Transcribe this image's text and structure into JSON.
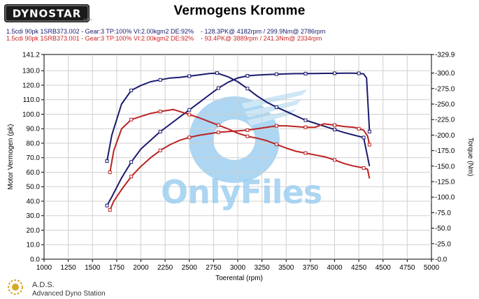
{
  "header": {
    "logo_text": "DYNOSTAR",
    "logo_sub": ".com",
    "title": "Vermogens Kromme"
  },
  "legend": {
    "run1": "1.5cdi 90pk 1SRB373.002 - Gear:3 TP:100% VI:2.00kgm2 DE:92%    - 128.3PK@ 4182rpm / 299.9Nm@ 2786rpm",
    "run2": "1.5cdi 90pk 1SRB373.001 - Gear:3 TP:100% VI:2.00kgm2 DE:92%    - 93.4PK@ 3889rpm / 241.3Nm@ 2334rpm"
  },
  "watermark": "OnlyFiles",
  "footer": {
    "brand": "A.D.S.",
    "subtitle": "Advanced Dyno Station"
  },
  "chart_data": {
    "type": "line",
    "xlabel": "Toerental (rpm)",
    "ylabel_left": "Motor Vermogen (pk)",
    "ylabel_right": "Torque (Nm)",
    "xlim": [
      1000,
      5000
    ],
    "xticks": [
      1000,
      1250,
      1500,
      1750,
      2000,
      2250,
      2500,
      2750,
      3000,
      3250,
      3500,
      3750,
      4000,
      4250,
      4500,
      4750,
      5000
    ],
    "ylim_left": [
      0,
      141.2
    ],
    "yticks_left": [
      "0.0",
      "10.0",
      "20.0",
      "30.0",
      "40.0",
      "50.0",
      "60.0",
      "70.0",
      "80.0",
      "90.0",
      "100.0",
      "110.0",
      "120.0",
      "130.0",
      "141.2"
    ],
    "ylim_right": [
      0,
      329.9
    ],
    "yticks_right": [
      "-0.0",
      "-25.0",
      "-50.0",
      "-75.0",
      "-100.0",
      "-125.0",
      "-150.0",
      "-175.0",
      "-200.0",
      "-225.0",
      "-250.0",
      "-275.0",
      "-300.0",
      "-329.9"
    ],
    "grid": true,
    "series": [
      {
        "name": "1.5cdi 90pk 1SRB373.002 power",
        "axis": "left",
        "color": "#1a1a6e",
        "x": [
          1650,
          1700,
          1800,
          1900,
          2000,
          2100,
          2200,
          2300,
          2400,
          2500,
          2600,
          2700,
          2800,
          2900,
          3000,
          3100,
          3200,
          3300,
          3400,
          3500,
          3600,
          3700,
          3800,
          3900,
          4000,
          4100,
          4182,
          4250,
          4300,
          4330,
          4360
        ],
        "values": [
          37,
          43,
          56,
          67,
          76,
          82,
          88,
          93,
          98,
          103,
          108,
          113,
          118,
          122,
          125,
          126.5,
          127,
          127.3,
          127.6,
          127.8,
          128,
          128,
          128.1,
          128.2,
          128.2,
          128.3,
          128.3,
          128.2,
          127.8,
          125,
          88
        ]
      },
      {
        "name": "1.5cdi 90pk 1SRB373.002 torque",
        "axis": "right",
        "color": "#1a1a6e",
        "x": [
          1650,
          1700,
          1800,
          1900,
          2000,
          2100,
          2200,
          2300,
          2400,
          2500,
          2600,
          2700,
          2786,
          2900,
          3000,
          3100,
          3200,
          3300,
          3400,
          3500,
          3600,
          3700,
          3800,
          3900,
          4000,
          4100,
          4200,
          4300,
          4360
        ],
        "values": [
          158,
          200,
          250,
          272,
          280,
          286,
          289,
          292,
          293,
          295,
          297,
          299,
          299.9,
          294,
          286,
          275,
          263,
          253,
          245,
          238,
          231,
          224,
          219,
          214,
          209,
          204,
          200,
          196,
          150
        ]
      },
      {
        "name": "1.5cdi 90pk 1SRB373.001 power",
        "axis": "left",
        "color": "#bb2222",
        "x": [
          1680,
          1720,
          1800,
          1900,
          2000,
          2100,
          2200,
          2300,
          2400,
          2500,
          2600,
          2700,
          2800,
          2900,
          3000,
          3100,
          3200,
          3300,
          3400,
          3500,
          3600,
          3700,
          3800,
          3889,
          4000,
          4100,
          4200,
          4250,
          4300,
          4340,
          4360
        ],
        "values": [
          34,
          40,
          48,
          57,
          64,
          70,
          75,
          79,
          82,
          84,
          85.5,
          86.5,
          87.5,
          88,
          88.5,
          89,
          90,
          91,
          92,
          92,
          91.5,
          91,
          91,
          93.4,
          92.5,
          91.5,
          91,
          90,
          89,
          85,
          79
        ]
      },
      {
        "name": "1.5cdi 90pk 1SRB373.001 torque",
        "axis": "right",
        "color": "#bb2222",
        "x": [
          1680,
          1720,
          1800,
          1900,
          2000,
          2100,
          2200,
          2334,
          2400,
          2500,
          2600,
          2700,
          2800,
          2900,
          3000,
          3100,
          3200,
          3300,
          3400,
          3500,
          3600,
          3700,
          3800,
          3900,
          4000,
          4100,
          4200,
          4300,
          4340,
          4360
        ],
        "values": [
          140,
          175,
          210,
          225,
          230,
          235,
          238,
          241.3,
          238,
          233,
          228,
          222,
          216,
          210,
          203,
          198,
          195,
          191,
          185,
          179,
          174,
          171,
          168,
          165,
          160,
          154,
          150,
          147,
          145,
          130
        ]
      }
    ]
  }
}
